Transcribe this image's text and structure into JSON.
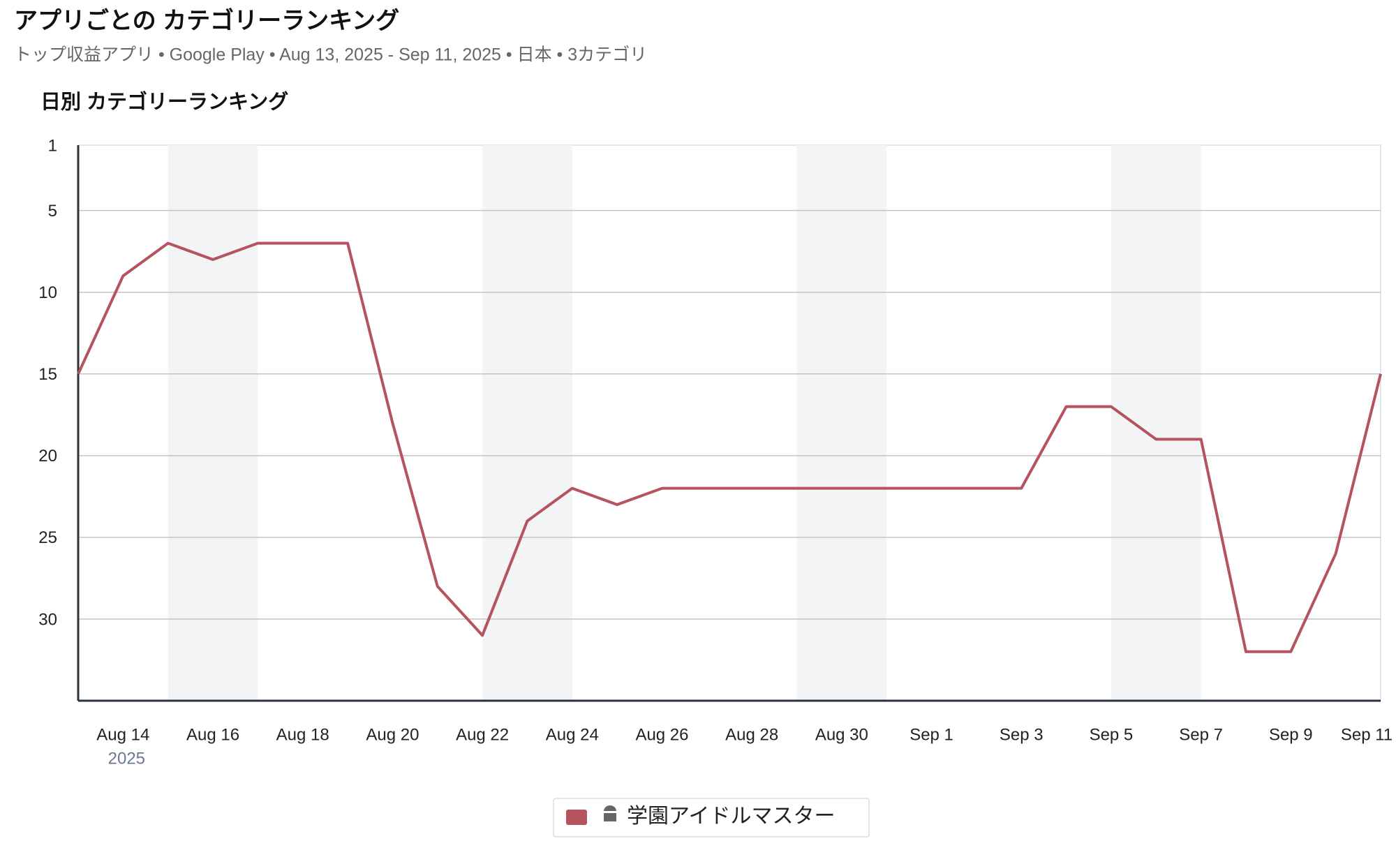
{
  "header": {
    "title": "アプリごとの カテゴリーランキング",
    "subtitle": "トップ収益アプリ • Google Play • Aug 13, 2025 - Sep 11, 2025 • 日本 • 3カテゴリ"
  },
  "chart_data": {
    "type": "line",
    "title": "日別 カテゴリーランキング",
    "categories": [
      null,
      "Aug 14",
      null,
      "Aug 16",
      null,
      "Aug 18",
      null,
      "Aug 20",
      null,
      "Aug 22",
      null,
      "Aug 24",
      null,
      "Aug 26",
      null,
      "Aug 28",
      null,
      "Aug 30",
      null,
      "Sep 1",
      null,
      "Sep 3",
      null,
      "Sep 5",
      null,
      "Sep 7",
      null,
      "Sep 9",
      null,
      "Sep 11"
    ],
    "x_year_label": "2025",
    "series": [
      {
        "name": "学園アイドルマスター",
        "color": "#b5535e",
        "values": [
          15,
          9,
          7,
          8,
          7,
          7,
          7,
          18,
          28,
          31,
          24,
          22,
          23,
          22,
          22,
          22,
          22,
          22,
          22,
          22,
          22,
          22,
          17,
          17,
          19,
          19,
          32,
          32,
          26,
          15
        ]
      }
    ],
    "ylim": [
      1,
      35
    ],
    "yticks": [
      1,
      5,
      10,
      15,
      20,
      25,
      30
    ],
    "y_reversed": true,
    "grid": true
  }
}
